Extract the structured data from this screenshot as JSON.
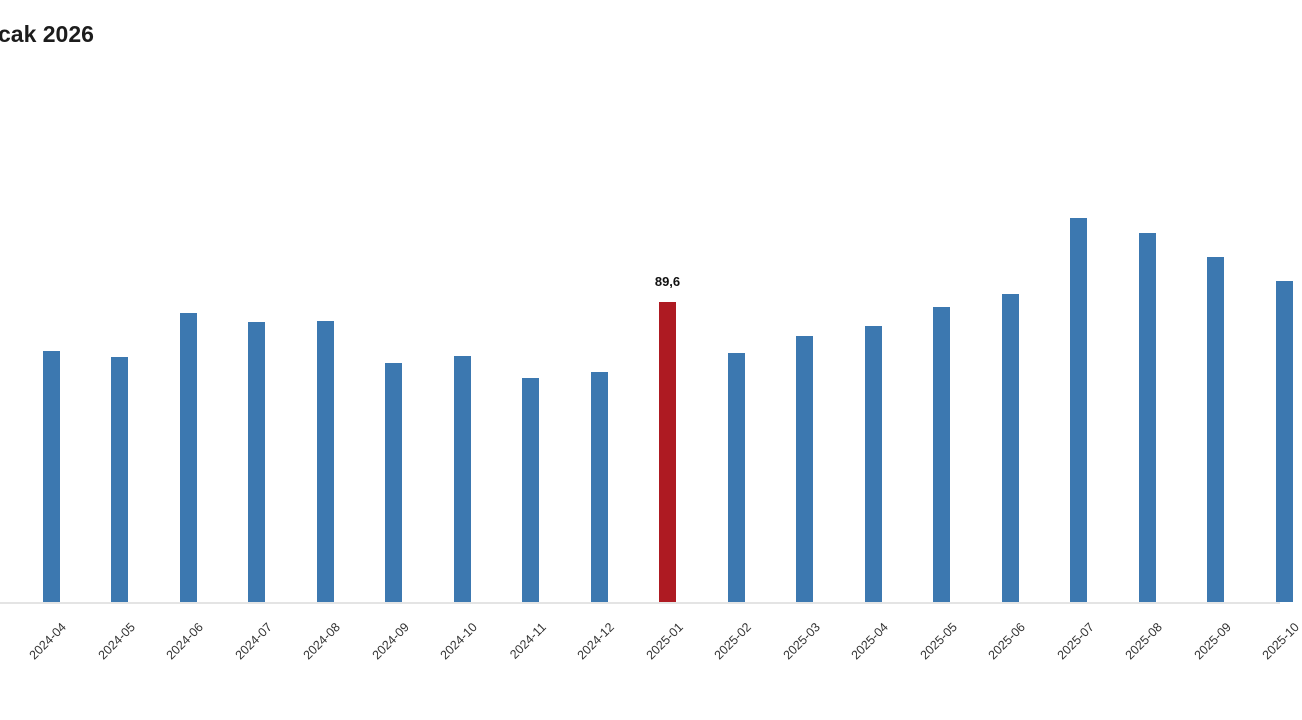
{
  "title": "cak 2026",
  "chart_data": {
    "type": "bar",
    "categories": [
      "2024-04",
      "2024-05",
      "2024-06",
      "2024-07",
      "2024-08",
      "2024-09",
      "2024-10",
      "2024-11",
      "2024-12",
      "2025-01",
      "2025-02",
      "2025-03",
      "2025-04",
      "2025-05",
      "2025-06",
      "2025-07",
      "2025-08",
      "2025-09",
      "2025-10"
    ],
    "values": [
      75.0,
      73.2,
      86.3,
      83.6,
      83.9,
      71.4,
      73.5,
      66.9,
      68.7,
      89.6,
      74.4,
      79.4,
      82.4,
      88.1,
      92.0,
      114.7,
      110.2,
      103.0,
      95.9
    ],
    "highlight": {
      "index": 9,
      "value_label": "89,6",
      "color": "#ae1a22"
    },
    "bar_color": "#3c78b0",
    "axis_line_color": "#e4e4e4",
    "background_color": "#ffffff",
    "xlabel": "",
    "ylabel": "",
    "ylim": [
      0,
      120
    ],
    "grid": false,
    "y_axis_visible": false,
    "legend": "none",
    "x_tick_rotation": -45,
    "note": "last bar and its tick label are clipped by the right edge; title is clipped by the left edge"
  }
}
